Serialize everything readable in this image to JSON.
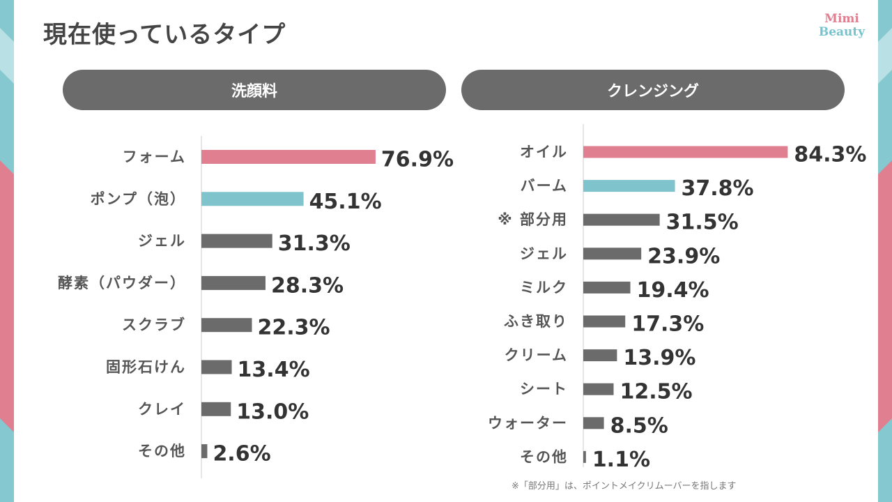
{
  "title": "現在使っているタイプ",
  "logo": {
    "line1": "Mimi",
    "line2": "Beauty"
  },
  "colors": {
    "highlight_pink": "#e07f90",
    "highlight_teal": "#7fc3cc",
    "bar_gray": "#6b6b6b",
    "pill_gray": "#6b6b6b"
  },
  "chart_data": [
    {
      "type": "bar",
      "orientation": "horizontal",
      "title": "洗顔料",
      "categories": [
        "フォーム",
        "ポンプ（泡）",
        "ジェル",
        "酵素（パウダー）",
        "スクラブ",
        "固形石けん",
        "クレイ",
        "その他"
      ],
      "values": [
        76.9,
        45.1,
        31.3,
        28.3,
        22.3,
        13.4,
        13.0,
        2.6
      ],
      "value_labels": [
        "76.9%",
        "45.1%",
        "31.3%",
        "28.3%",
        "22.3%",
        "13.4%",
        "13.0%",
        "2.6%"
      ],
      "bar_colors": [
        "#e07f90",
        "#7fc3cc",
        "#6b6b6b",
        "#6b6b6b",
        "#6b6b6b",
        "#6b6b6b",
        "#6b6b6b",
        "#6b6b6b"
      ],
      "xlim": [
        0,
        100
      ]
    },
    {
      "type": "bar",
      "orientation": "horizontal",
      "title": "クレンジング",
      "categories": [
        "オイル",
        "バーム",
        "※ 部分用",
        "ジェル",
        "ミルク",
        "ふき取り",
        "クリーム",
        "シート",
        "ウォーター",
        "その他"
      ],
      "values": [
        84.3,
        37.8,
        31.5,
        23.9,
        19.4,
        17.3,
        13.9,
        12.5,
        8.5,
        1.1
      ],
      "value_labels": [
        "84.3%",
        "37.8%",
        "31.5%",
        "23.9%",
        "19.4%",
        "17.3%",
        "13.9%",
        "12.5%",
        "8.5%",
        "1.1%"
      ],
      "bar_colors": [
        "#e07f90",
        "#7fc3cc",
        "#6b6b6b",
        "#6b6b6b",
        "#6b6b6b",
        "#6b6b6b",
        "#6b6b6b",
        "#6b6b6b",
        "#6b6b6b",
        "#6b6b6b"
      ],
      "xlim": [
        0,
        100
      ]
    }
  ],
  "footnote": "※「部分用」は、ポイントメイクリムーバーを指します"
}
